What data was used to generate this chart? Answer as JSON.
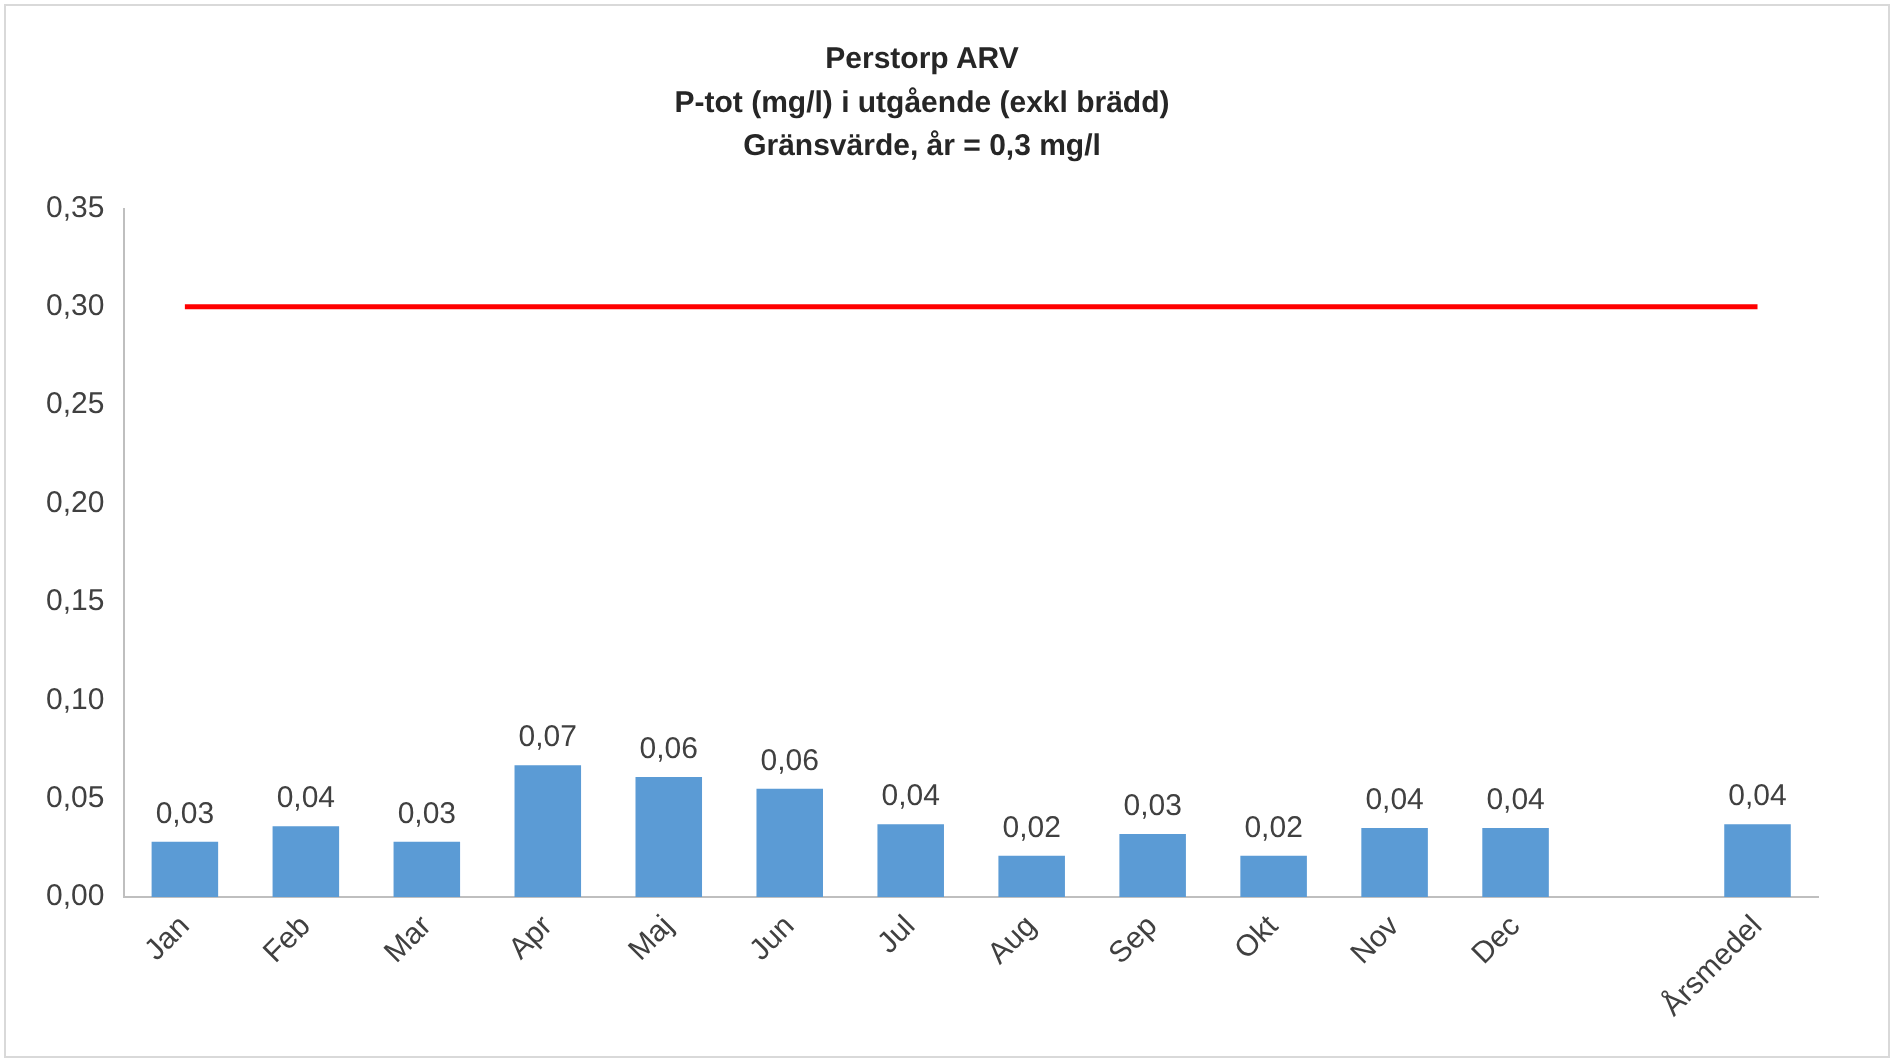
{
  "chart_data": {
    "type": "bar",
    "title": "Perstorp ARV",
    "subtitle": "P-tot (mg/l) i utgående (exkl brädd)",
    "annotations": [
      "Gränsvärde, år = 0,3 mg/l"
    ],
    "categories": [
      "Jan",
      "Feb",
      "Mar",
      "Apr",
      "Maj",
      "Jun",
      "Jul",
      "Aug",
      "Sep",
      "Okt",
      "Nov",
      "Dec",
      null,
      "Årsmedel"
    ],
    "series": [
      {
        "color": "#5b9bd5",
        "values": [
          0.028,
          0.036,
          0.028,
          0.067,
          0.061,
          0.055,
          0.037,
          0.021,
          0.032,
          0.021,
          0.035,
          0.035,
          null,
          0.037
        ],
        "value_labels": [
          "0,03",
          "0,04",
          "0,03",
          "0,07",
          "0,06",
          "0,06",
          "0,04",
          "0,02",
          "0,03",
          "0,02",
          "0,04",
          "0,04",
          null,
          "0,04"
        ]
      },
      {
        "type": "line",
        "color": "#ff0000",
        "marker": "none",
        "values": [
          0.3,
          0.3,
          0.3,
          0.3,
          0.3,
          0.3,
          0.3,
          0.3,
          0.3,
          0.3,
          0.3,
          0.3,
          0.3,
          0.3
        ]
      }
    ],
    "ylim": [
      0,
      0.35
    ],
    "yticks": [
      {
        "value": 0,
        "label": "0,00"
      },
      {
        "value": 0.05,
        "label": "0,05"
      },
      {
        "value": 0.1,
        "label": "0,10"
      },
      {
        "value": 0.15,
        "label": "0,15"
      },
      {
        "value": 0.2,
        "label": "0,20"
      },
      {
        "value": 0.25,
        "label": "0,25"
      },
      {
        "value": 0.3,
        "label": "0,30"
      },
      {
        "value": 0.35,
        "label": "0,35"
      }
    ],
    "grid": false,
    "legend": false
  }
}
